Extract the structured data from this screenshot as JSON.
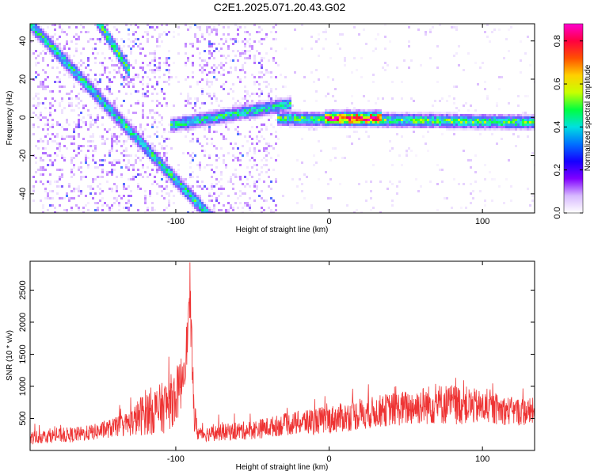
{
  "figure": {
    "title": "C2E1.2025.071.20.43.G02"
  },
  "chart_data": [
    {
      "type": "heatmap",
      "xlabel": "Height of straight line (km)",
      "ylabel": "Frequency (Hz)",
      "xlim": [
        -195,
        134
      ],
      "ylim": [
        -50,
        49
      ],
      "xticks": [
        -100,
        0,
        100
      ],
      "yticks": [
        -40,
        -20,
        0,
        20,
        40
      ],
      "colorbar": {
        "label": "Normalized spectral amplitude",
        "range": [
          0,
          0.88
        ],
        "ticks": [
          0.0,
          0.2,
          0.4,
          0.6,
          0.8
        ],
        "colormap": [
          "#ffffff",
          "#d7b9ff",
          "#8000ff",
          "#1500ff",
          "#0070ff",
          "#00e0e0",
          "#00ff40",
          "#c8ff00",
          "#ffd000",
          "#ff5000",
          "#ff0040",
          "#ff00d0"
        ]
      },
      "features": [
        {
          "x": [
            -195,
            -80
          ],
          "y": [
            49,
            -50
          ],
          "value": 0.45,
          "note": "steep descending streak"
        },
        {
          "x": [
            -150,
            -135
          ],
          "y": [
            49,
            30
          ],
          "value": 0.5
        },
        {
          "x": [
            -100,
            -30
          ],
          "y": [
            -3,
            7
          ],
          "value": 0.45
        },
        {
          "x": [
            -30,
            134
          ],
          "y": [
            0,
            -2
          ],
          "value": 0.5
        },
        {
          "x": [
            0,
            30
          ],
          "y": [
            0,
            0
          ],
          "value": 0.85
        }
      ]
    },
    {
      "type": "line",
      "xlabel": "Height of straight line (km)",
      "ylabel": "SNR (10 * v/v)",
      "xlim": [
        -195,
        134
      ],
      "ylim": [
        0,
        2950
      ],
      "xticks": [
        -100,
        0,
        100
      ],
      "yticks": [
        500,
        1000,
        1500,
        2000,
        2500
      ],
      "color": "#ee3333",
      "series": [
        {
          "x": [
            -195,
            -180,
            -170,
            -160,
            -150,
            -140,
            -130,
            -125,
            -120,
            -115,
            -110,
            -105,
            -100,
            -97,
            -95,
            -93,
            -92,
            -91,
            -90,
            -89,
            -88,
            -86,
            -84,
            -80,
            -70,
            -60,
            -50,
            -40,
            -30,
            -20,
            -10,
            0,
            10,
            20,
            30,
            40,
            50,
            60,
            70,
            80,
            90,
            100,
            110,
            120,
            134
          ],
          "y": [
            200,
            230,
            240,
            260,
            300,
            360,
            420,
            500,
            600,
            620,
            640,
            720,
            850,
            1000,
            1300,
            1600,
            1900,
            2300,
            1850,
            1200,
            550,
            300,
            260,
            260,
            280,
            300,
            320,
            360,
            400,
            430,
            460,
            480,
            520,
            560,
            600,
            640,
            660,
            700,
            720,
            720,
            700,
            670,
            640,
            610,
            600
          ],
          "amp": [
            110,
            110,
            120,
            120,
            130,
            150,
            200,
            280,
            360,
            380,
            400,
            420,
            440,
            420,
            400,
            380,
            380,
            400,
            400,
            350,
            300,
            150,
            110,
            120,
            130,
            140,
            150,
            160,
            170,
            190,
            210,
            220,
            230,
            240,
            250,
            260,
            280,
            300,
            320,
            320,
            300,
            260,
            240,
            220,
            220
          ]
        }
      ]
    }
  ]
}
